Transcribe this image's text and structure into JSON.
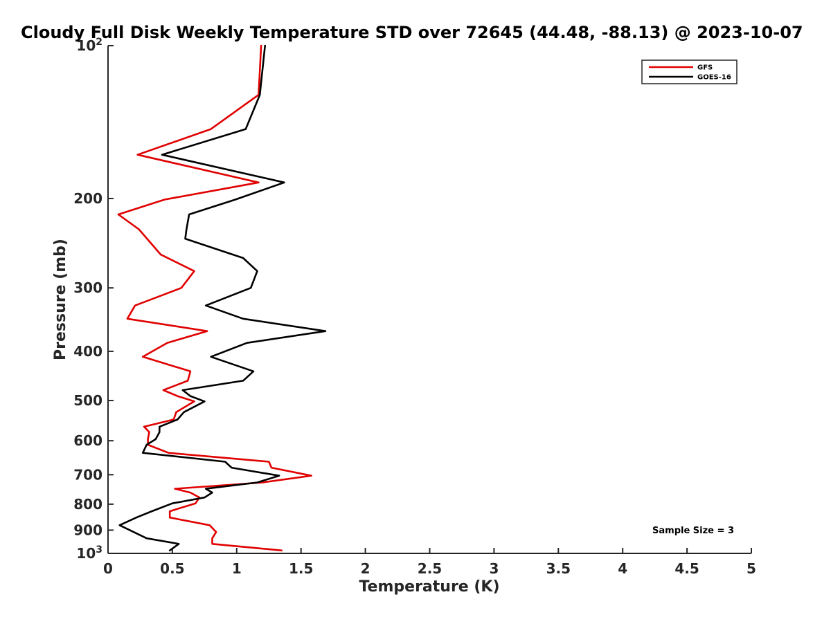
{
  "chart_data": {
    "type": "line",
    "title": "Cloudy Full Disk Weekly Temperature STD over 72645 (44.48, -88.13) @ 2023-10-07",
    "xlabel": "Temperature (K)",
    "ylabel": "Pressure (mb)",
    "xlim": [
      0,
      5
    ],
    "ylim": [
      1000,
      100
    ],
    "yscale": "log",
    "y_reversed": true,
    "x_ticks": [
      "0",
      "0.5",
      "1",
      "1.5",
      "2",
      "2.5",
      "3",
      "3.5",
      "4",
      "4.5",
      "5"
    ],
    "y_ticks": [
      {
        "value": 200,
        "label": "200"
      },
      {
        "value": 300,
        "label": "300"
      },
      {
        "value": 400,
        "label": "400"
      },
      {
        "value": 500,
        "label": "500"
      },
      {
        "value": 600,
        "label": "600"
      },
      {
        "value": 700,
        "label": "700"
      },
      {
        "value": 800,
        "label": "800"
      },
      {
        "value": 900,
        "label": "900"
      }
    ],
    "y_tick_top": {
      "base": "10",
      "exp": "2"
    },
    "y_tick_bottom": {
      "base": "10",
      "exp": "3"
    },
    "grid": false,
    "legend_position": "top-right",
    "annotation": "Sample Size = 3",
    "series": [
      {
        "name": "GFS",
        "color": "#e00000",
        "points": [
          [
            1.19,
            100
          ],
          [
            1.17,
            125
          ],
          [
            0.8,
            146
          ],
          [
            0.23,
            164
          ],
          [
            1.17,
            186
          ],
          [
            0.44,
            201
          ],
          [
            0.08,
            215
          ],
          [
            0.24,
            230
          ],
          [
            0.41,
            258
          ],
          [
            0.67,
            278
          ],
          [
            0.57,
            300
          ],
          [
            0.21,
            325
          ],
          [
            0.15,
            345
          ],
          [
            0.77,
            365
          ],
          [
            0.46,
            385
          ],
          [
            0.27,
            410
          ],
          [
            0.64,
            438
          ],
          [
            0.62,
            457
          ],
          [
            0.43,
            477
          ],
          [
            0.54,
            490
          ],
          [
            0.67,
            502
          ],
          [
            0.53,
            527
          ],
          [
            0.51,
            545
          ],
          [
            0.28,
            563
          ],
          [
            0.32,
            577
          ],
          [
            0.31,
            596
          ],
          [
            0.31,
            611
          ],
          [
            0.47,
            634
          ],
          [
            1.25,
            660
          ],
          [
            1.27,
            678
          ],
          [
            1.58,
            703
          ],
          [
            1.2,
            725
          ],
          [
            0.52,
            746
          ],
          [
            0.64,
            759
          ],
          [
            0.71,
            776
          ],
          [
            0.68,
            797
          ],
          [
            0.48,
            826
          ],
          [
            0.48,
            850
          ],
          [
            0.79,
            880
          ],
          [
            0.84,
            908
          ],
          [
            0.81,
            934
          ],
          [
            0.81,
            958
          ],
          [
            1.35,
            987
          ]
        ]
      },
      {
        "name": "GOES-16",
        "color": "#000000",
        "points": [
          [
            1.22,
            100
          ],
          [
            1.18,
            125
          ],
          [
            1.07,
            146
          ],
          [
            0.42,
            164
          ],
          [
            1.37,
            186
          ],
          [
            0.99,
            201
          ],
          [
            0.63,
            215
          ],
          [
            0.61,
            230
          ],
          [
            0.6,
            240
          ],
          [
            1.05,
            262
          ],
          [
            1.16,
            278
          ],
          [
            1.11,
            300
          ],
          [
            0.76,
            325
          ],
          [
            1.05,
            345
          ],
          [
            1.69,
            365
          ],
          [
            1.08,
            385
          ],
          [
            0.8,
            410
          ],
          [
            1.13,
            438
          ],
          [
            1.05,
            457
          ],
          [
            0.58,
            477
          ],
          [
            0.64,
            490
          ],
          [
            0.75,
            502
          ],
          [
            0.59,
            527
          ],
          [
            0.54,
            545
          ],
          [
            0.4,
            563
          ],
          [
            0.4,
            577
          ],
          [
            0.37,
            596
          ],
          [
            0.3,
            611
          ],
          [
            0.27,
            634
          ],
          [
            0.91,
            660
          ],
          [
            0.96,
            678
          ],
          [
            1.33,
            703
          ],
          [
            1.16,
            725
          ],
          [
            0.76,
            746
          ],
          [
            0.81,
            759
          ],
          [
            0.75,
            776
          ],
          [
            0.5,
            797
          ],
          [
            0.34,
            826
          ],
          [
            0.22,
            850
          ],
          [
            0.09,
            880
          ],
          [
            0.3,
            934
          ],
          [
            0.55,
            958
          ],
          [
            0.48,
            987
          ]
        ]
      }
    ]
  }
}
